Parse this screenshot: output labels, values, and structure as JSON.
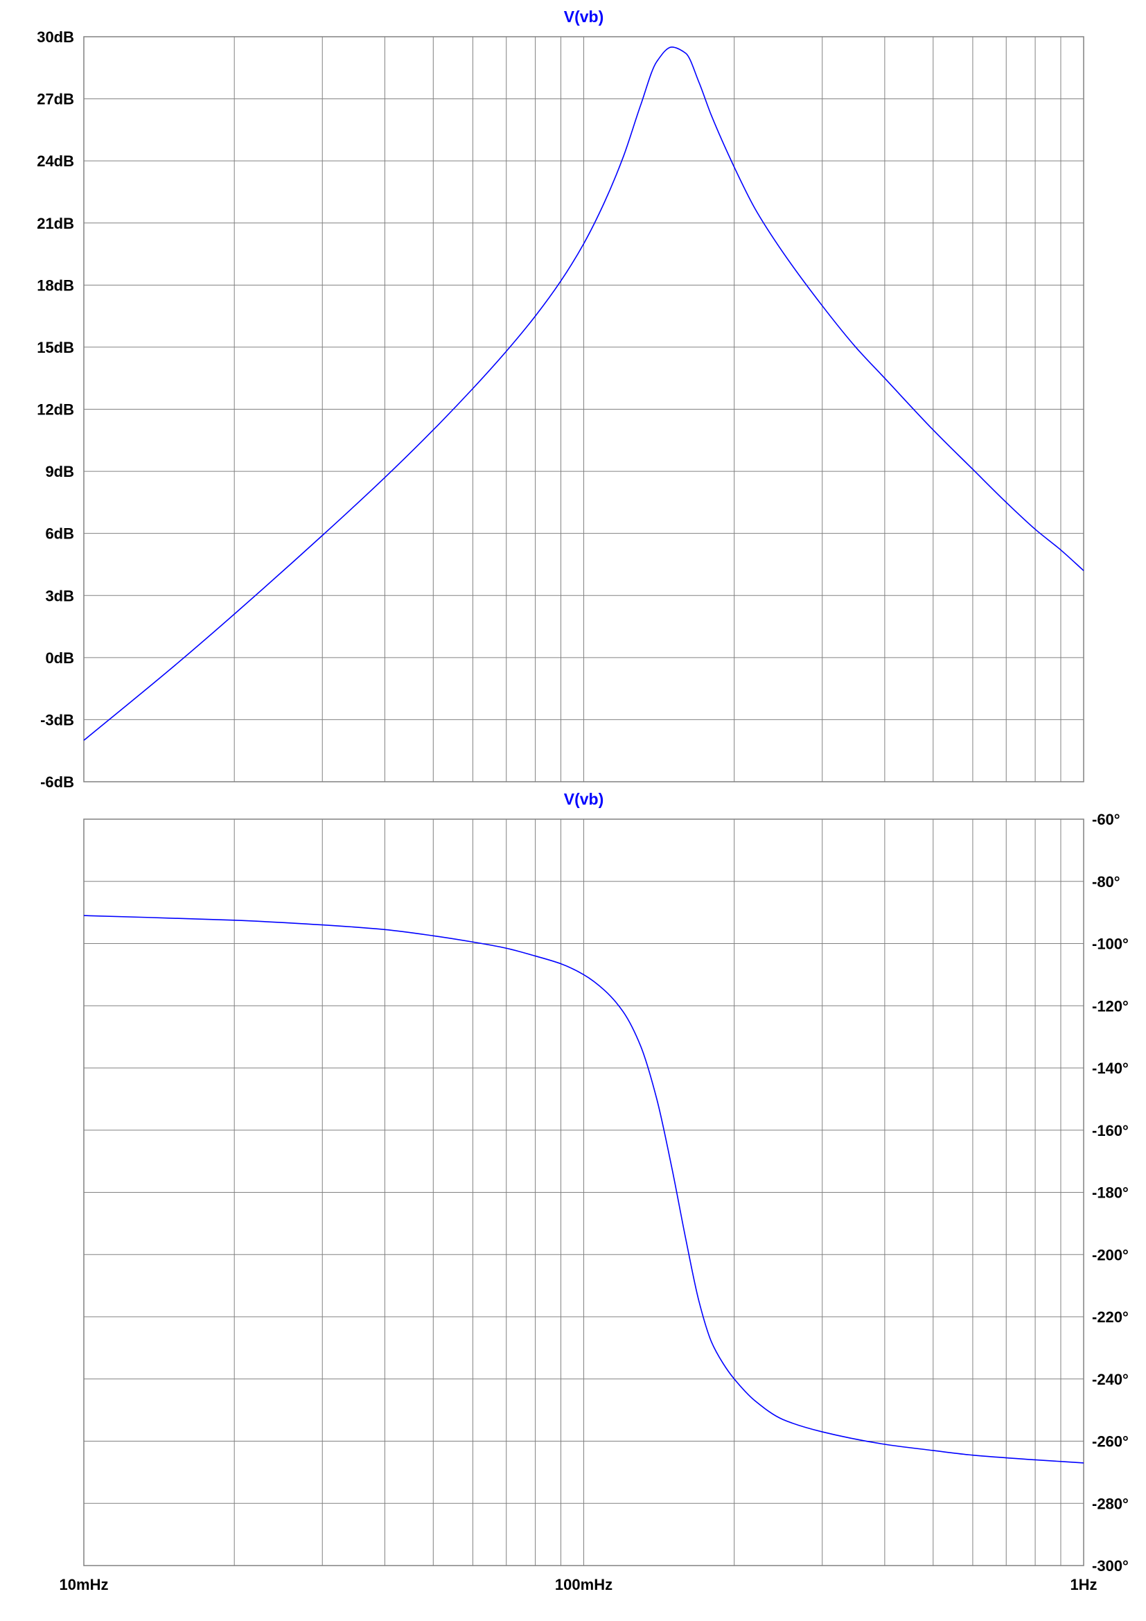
{
  "theme": {
    "background": "#ffffff",
    "grid_color": "#808080",
    "trace_color": "#0000ff",
    "text_color": "#000000"
  },
  "chart_data": [
    {
      "type": "line",
      "title": "V(vb)",
      "x_scale": "log",
      "xlim": [
        0.01,
        1
      ],
      "y_axis_side": "left",
      "ylim": [
        -6,
        30
      ],
      "y_ticks": [
        30,
        27,
        24,
        21,
        18,
        15,
        12,
        9,
        6,
        3,
        0,
        -3,
        -6
      ],
      "y_tick_labels": [
        "30dB",
        "27dB",
        "24dB",
        "21dB",
        "18dB",
        "15dB",
        "12dB",
        "9dB",
        "6dB",
        "3dB",
        "0dB",
        "-3dB",
        "-6dB"
      ],
      "grid": true,
      "series": [
        {
          "name": "V(vb)",
          "x": [
            0.01,
            0.015,
            0.02,
            0.03,
            0.04,
            0.05,
            0.06,
            0.07,
            0.08,
            0.09,
            0.1,
            0.11,
            0.12,
            0.13,
            0.14,
            0.15,
            0.16,
            0.17,
            0.18,
            0.2,
            0.22,
            0.25,
            0.3,
            0.35,
            0.4,
            0.5,
            0.6,
            0.7,
            0.8,
            0.9,
            1.0
          ],
          "y": [
            -4.0,
            -0.5,
            2.1,
            5.9,
            8.7,
            11.0,
            13.0,
            14.8,
            16.5,
            18.2,
            20.0,
            22.0,
            24.2,
            26.7,
            28.8,
            29.5,
            29.2,
            27.8,
            26.2,
            23.7,
            21.7,
            19.6,
            17.0,
            15.0,
            13.5,
            11.0,
            9.1,
            7.5,
            6.2,
            5.2,
            4.2
          ]
        }
      ]
    },
    {
      "type": "line",
      "title": "V(vb)",
      "x_scale": "log",
      "xlim": [
        0.01,
        1
      ],
      "x_ticks": [
        0.01,
        0.1,
        1
      ],
      "x_tick_labels": [
        "10mHz",
        "100mHz",
        "1Hz"
      ],
      "y_axis_side": "right",
      "ylim": [
        -300,
        -60
      ],
      "y_ticks": [
        -60,
        -80,
        -100,
        -120,
        -140,
        -160,
        -180,
        -200,
        -220,
        -240,
        -260,
        -280,
        -300
      ],
      "y_tick_labels": [
        "-60°",
        "-80°",
        "-100°",
        "-120°",
        "-140°",
        "-160°",
        "-180°",
        "-200°",
        "-220°",
        "-240°",
        "-260°",
        "-280°",
        "-300°"
      ],
      "grid": true,
      "series": [
        {
          "name": "V(vb)",
          "x": [
            0.01,
            0.02,
            0.03,
            0.04,
            0.05,
            0.06,
            0.07,
            0.08,
            0.09,
            0.1,
            0.11,
            0.12,
            0.13,
            0.14,
            0.15,
            0.16,
            0.17,
            0.18,
            0.19,
            0.2,
            0.22,
            0.25,
            0.3,
            0.4,
            0.5,
            0.6,
            0.8,
            1.0
          ],
          "y": [
            -91,
            -92.5,
            -94,
            -95.5,
            -97.5,
            -99.5,
            -101.5,
            -104,
            -106.5,
            -110,
            -115,
            -122,
            -133,
            -150,
            -172,
            -195,
            -215,
            -228,
            -235,
            -240,
            -247,
            -253,
            -257,
            -261,
            -263,
            -264.5,
            -266,
            -267
          ]
        }
      ]
    }
  ]
}
